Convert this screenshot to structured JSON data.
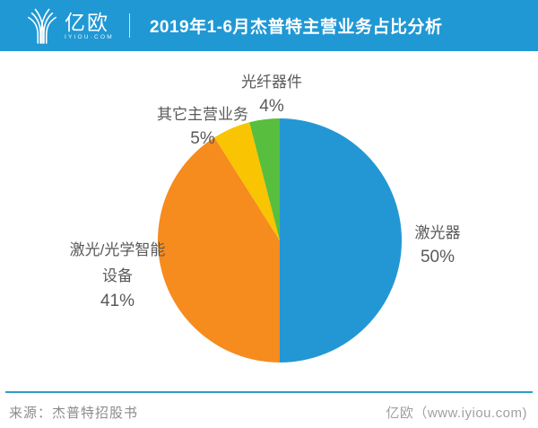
{
  "header": {
    "brand": "亿欧",
    "brand_sub": "IYIOU·COM",
    "title": "2019年1-6月杰普特主营业务占比分析"
  },
  "chart_data": {
    "type": "pie",
    "title": "2019年1-6月杰普特主营业务占比分析",
    "start_angle_deg": 0,
    "direction": "clockwise",
    "legend_position": "none",
    "labels_outside": true,
    "slices": [
      {
        "label": "激光器",
        "value": 50,
        "pct_label": "50%",
        "color": "#2397D4"
      },
      {
        "label": "激光/光学智能设备",
        "label_line1": "激光/光学智能",
        "label_line2": "设备",
        "value": 41,
        "pct_label": "41%",
        "color": "#F68B1E"
      },
      {
        "label": "其它主营业务",
        "value": 5,
        "pct_label": "5%",
        "color": "#F9C402"
      },
      {
        "label": "光纤器件",
        "value": 4,
        "pct_label": "4%",
        "color": "#58BE3D"
      }
    ]
  },
  "footer": {
    "source": "来源：杰普特招股书",
    "brand": "亿欧（www.iyiou.com)"
  },
  "colors": {
    "header_bg": "#2098D4",
    "footer_line": "#2E9EC9",
    "label_text": "#595959"
  }
}
